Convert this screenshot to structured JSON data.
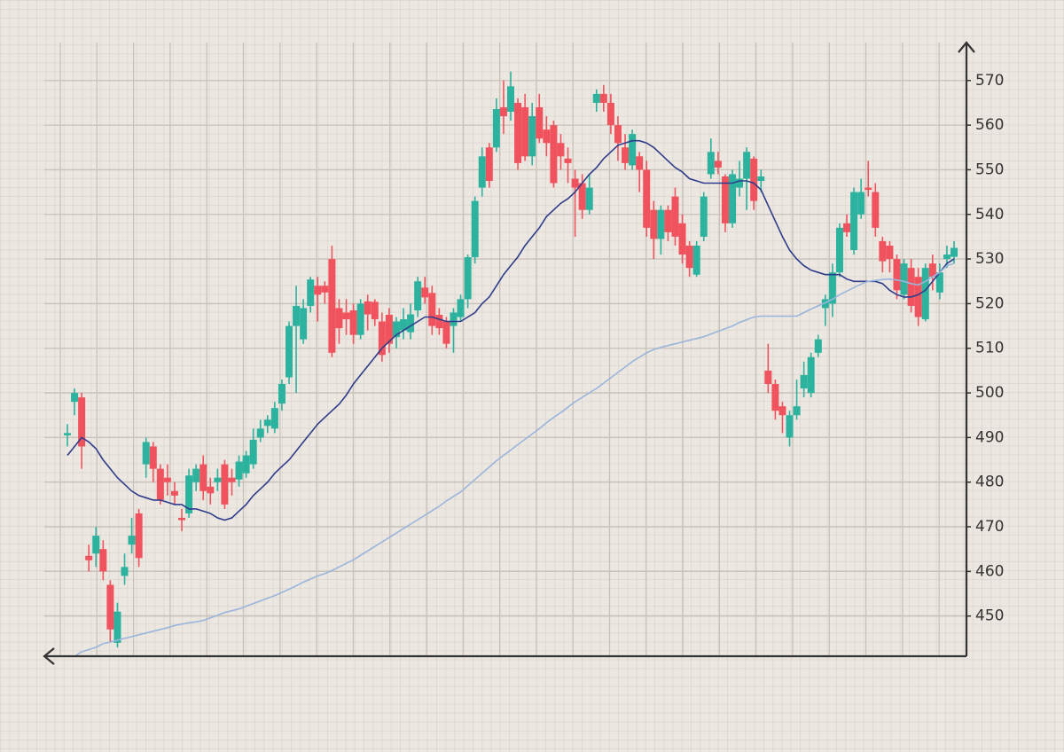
{
  "chart_data": {
    "type": "candlestick",
    "up_color": "#2bb39f",
    "down_color": "#f0535e",
    "open": [
      490.5,
      498,
      499,
      463.5,
      464,
      465,
      457,
      444,
      459,
      466,
      473,
      484,
      488,
      483,
      481,
      478,
      472,
      473,
      480,
      484,
      479,
      480,
      484,
      481,
      480.6,
      482,
      484,
      490,
      492.6,
      492,
      497.6,
      503.5,
      515,
      512,
      519.5,
      524,
      524,
      530,
      519,
      518,
      518.5,
      513,
      520.5,
      520.4,
      516,
      517.5,
      512.5,
      514,
      513.6,
      518.5,
      523.6,
      522.4,
      517.5,
      516,
      515,
      517,
      521,
      530.4,
      546,
      555,
      555,
      564,
      563,
      565,
      564,
      553,
      564,
      559,
      560,
      556,
      552.5,
      548,
      547,
      541,
      565,
      567,
      565,
      560,
      555,
      551,
      553,
      550,
      541,
      534.5,
      541,
      544,
      538,
      533,
      526.5,
      535,
      549,
      552,
      548.5,
      538,
      546,
      548,
      552.5,
      547.5,
      505,
      502,
      497,
      490,
      495,
      501,
      500,
      509,
      519,
      520,
      527,
      538,
      532,
      540,
      546,
      545,
      534,
      533,
      530,
      522,
      528,
      526,
      516.5,
      529,
      522.5,
      530,
      530.5
    ],
    "high": [
      493,
      501,
      500,
      466,
      470,
      467,
      458,
      453,
      464,
      472,
      474,
      490,
      489,
      484,
      484,
      480,
      474,
      483,
      484,
      486,
      481,
      483,
      485,
      483,
      486,
      487,
      492,
      494,
      495,
      498,
      503,
      516,
      524,
      521,
      526,
      526,
      525,
      533,
      521,
      521,
      520,
      521,
      522,
      521,
      518,
      519,
      517,
      519,
      520,
      526,
      526,
      524,
      519,
      517,
      519,
      522,
      531,
      544,
      555,
      556,
      566,
      570,
      572,
      566,
      567,
      565,
      567,
      562,
      561,
      558,
      555,
      550,
      549,
      549,
      568,
      569,
      567,
      562,
      558,
      559,
      554,
      552,
      543,
      542,
      542,
      546,
      540,
      534,
      534,
      545,
      557,
      554,
      549,
      550,
      552,
      555,
      553,
      550,
      511,
      503,
      498,
      496,
      503,
      507,
      509,
      513,
      522,
      529,
      538,
      540,
      546,
      548,
      552,
      547,
      535,
      534,
      531,
      530,
      530,
      528,
      529,
      531,
      529,
      533,
      534
    ],
    "low": [
      488,
      495,
      483,
      460,
      461,
      458,
      444,
      443,
      457,
      464,
      461,
      481,
      480,
      475,
      477,
      475,
      469,
      472,
      478,
      476,
      475,
      478,
      474,
      477,
      479,
      481,
      483,
      489,
      491,
      491,
      496,
      502,
      500,
      511,
      518,
      516,
      520,
      508,
      511,
      513,
      511,
      512,
      514,
      515,
      507,
      509,
      510,
      512,
      512,
      517,
      520,
      513,
      513,
      510,
      509,
      516,
      519,
      529,
      544,
      546,
      554,
      558,
      561,
      550,
      552,
      551,
      556,
      553,
      546,
      550,
      547,
      535,
      539,
      540,
      563,
      563,
      558,
      552,
      550,
      550,
      545,
      535,
      530,
      531,
      534,
      533,
      529,
      526,
      526,
      534,
      548,
      549,
      536,
      537,
      544,
      541,
      541,
      545,
      500,
      494,
      491,
      488,
      494,
      499,
      499,
      508,
      515,
      517,
      526,
      535,
      531,
      539,
      544,
      535,
      527,
      527,
      521,
      521,
      518,
      515,
      516,
      523,
      521,
      528,
      529
    ],
    "close": [
      491,
      500,
      488,
      462.5,
      468,
      460,
      447,
      451,
      461,
      468,
      463,
      489,
      483,
      476,
      480,
      477,
      471.5,
      481.5,
      483,
      478,
      477.5,
      481,
      475,
      480,
      484.6,
      486,
      489.5,
      492,
      494,
      496.6,
      502,
      515,
      519.5,
      519,
      525.4,
      522,
      522.5,
      509,
      514.5,
      516.5,
      513,
      520,
      517.6,
      516.5,
      508.5,
      511,
      516,
      516.5,
      517.6,
      525,
      521.4,
      515,
      514.5,
      511,
      518,
      521,
      530.4,
      543,
      553,
      547.5,
      563.6,
      562,
      568.7,
      551.5,
      553,
      562,
      557,
      556,
      547,
      553,
      551.5,
      546,
      541,
      546,
      567,
      565,
      560,
      556,
      551.5,
      558,
      550,
      537,
      534.5,
      541,
      536,
      535,
      531,
      528,
      533,
      544,
      554,
      550.5,
      538,
      549,
      548,
      554,
      543,
      548.5,
      502,
      496,
      495,
      495,
      497,
      504,
      508,
      512,
      521,
      527,
      537,
      536,
      545,
      545,
      545.5,
      537,
      529.5,
      530,
      523,
      529,
      519.5,
      517,
      528,
      526,
      527,
      531,
      532.5
    ],
    "series": [
      {
        "color": "#2e3c8c",
        "values": [
          486,
          488,
          490,
          489,
          487.5,
          485,
          483,
          481,
          479.5,
          478,
          477,
          476.5,
          476,
          476,
          475.5,
          475,
          475,
          474,
          474,
          473.5,
          473,
          472,
          471.5,
          472,
          473.5,
          475,
          477,
          478.5,
          480,
          482,
          483.5,
          485,
          487,
          489,
          491,
          493,
          494.5,
          496,
          497.5,
          499.5,
          502,
          504,
          506,
          508,
          510,
          511.5,
          513,
          514,
          515,
          516,
          517,
          517,
          516.5,
          516,
          516,
          516,
          517,
          518,
          520,
          521.5,
          524,
          526.5,
          528.5,
          530.5,
          533,
          535,
          537,
          539.5,
          541,
          542.5,
          543.5,
          545,
          547,
          549,
          550.5,
          552.5,
          554,
          555.5,
          556,
          556.5,
          556.5,
          556,
          555,
          553.5,
          552,
          550.5,
          549.5,
          548,
          547.5,
          547,
          547,
          547,
          547,
          547,
          547.5,
          547.5,
          547,
          545.5,
          542,
          538.5,
          535,
          532,
          530,
          528.5,
          527.5,
          527,
          526.5,
          526.5,
          526.5,
          525.5,
          525,
          525,
          525,
          525,
          524.5,
          523,
          522,
          521.5,
          521.5,
          522,
          523,
          525,
          527,
          529,
          530
        ]
      },
      {
        "color": "#9ab5dc",
        "values": [
          null,
          441,
          442,
          442.5,
          443,
          443.8,
          444.2,
          444.6,
          445,
          445.4,
          445.8,
          446.2,
          446.6,
          447,
          447.4,
          447.9,
          448.2,
          448.5,
          448.7,
          449,
          449.6,
          450.2,
          450.8,
          451.2,
          451.6,
          452.2,
          452.8,
          453.4,
          454,
          454.6,
          455.3,
          456,
          456.8,
          457.6,
          458.3,
          459,
          459.5,
          460.2,
          461,
          461.8,
          462.6,
          463.6,
          464.6,
          465.6,
          466.6,
          467.6,
          468.6,
          469.6,
          470.6,
          471.6,
          472.6,
          473.6,
          474.6,
          475.8,
          476.8,
          477.8,
          479.2,
          480.6,
          482,
          483.4,
          484.8,
          486,
          487.2,
          488.4,
          489.6,
          490.8,
          492,
          493.3,
          494.5,
          495.6,
          496.8,
          498,
          499,
          500,
          501,
          502.2,
          503.4,
          504.6,
          505.8,
          507,
          508,
          509,
          509.7,
          510.2,
          510.6,
          511,
          511.4,
          511.8,
          512.2,
          512.6,
          513.2,
          513.8,
          514.4,
          515,
          515.8,
          516.4,
          517,
          517.2,
          517.2,
          517.2,
          517.2,
          517.2,
          517.2,
          518,
          518.8,
          519.5,
          520.2,
          521,
          522,
          522.8,
          523.6,
          524.4,
          525,
          525.2,
          525.4,
          525.5,
          525.3,
          525,
          524.5,
          524.2,
          525,
          526,
          527,
          528.5,
          529
        ]
      }
    ],
    "ylim": [
      441,
      578.5
    ],
    "yticks": [
      450,
      460,
      470,
      480,
      490,
      500,
      510,
      520,
      530,
      540,
      550,
      560,
      570
    ],
    "grid": true
  }
}
